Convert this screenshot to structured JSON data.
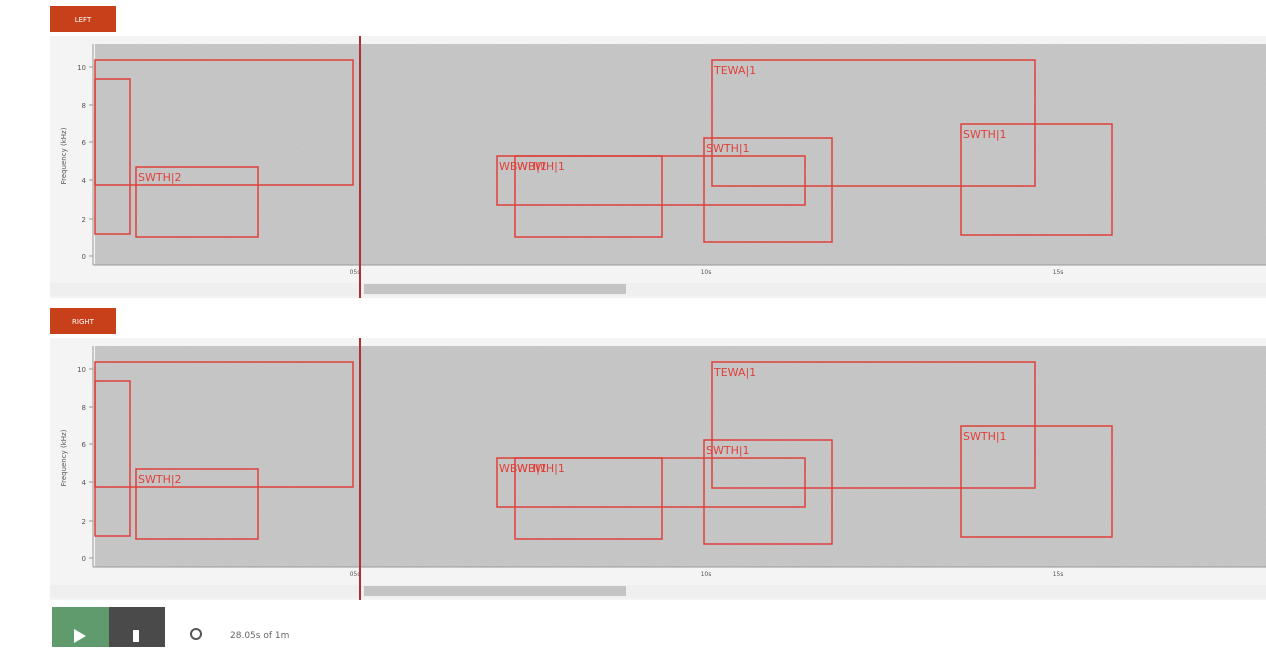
{
  "channels": [
    {
      "label": "LEFT",
      "y_axis_label": "Frequency (kHz)",
      "yticks": [
        0,
        2,
        4,
        6,
        8,
        10
      ],
      "xticks": [
        "05s",
        "10s",
        "15s"
      ],
      "annotations": [
        "SWTH|2",
        "WBWH|1",
        "WBWH|1",
        "SWTH|1",
        "TEWA|1",
        "SWTH|1"
      ]
    },
    {
      "label": "RIGHT",
      "y_axis_label": "Frequency (kHz)",
      "yticks": [
        0,
        2,
        4,
        6,
        8,
        10
      ],
      "xticks": [
        "05s",
        "10s",
        "15s"
      ],
      "annotations": [
        "SWTH|2",
        "WBWH|1",
        "WBWH|1",
        "SWTH|1",
        "TEWA|1",
        "SWTH|1"
      ]
    }
  ],
  "player": {
    "status": "28.05s of 1m"
  }
}
